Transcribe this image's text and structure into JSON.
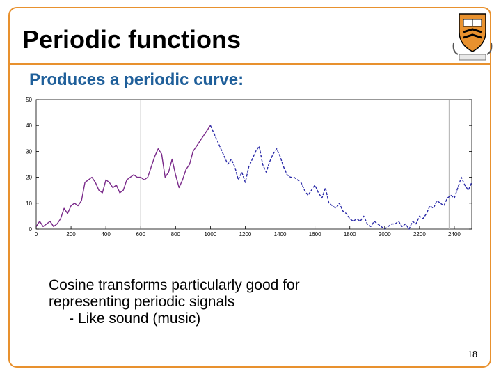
{
  "slide": {
    "title": "Periodic functions",
    "subtitle": "Produces a periodic curve:",
    "body_lines": [
      "Cosine transforms particularly good for",
      "representing periodic signals",
      "     - Like sound (music)"
    ],
    "page_number": "18",
    "colors": {
      "accent": "#e8912e",
      "subtitle": "#1f5f9a",
      "curve_purple": "#7a2a8a",
      "curve_blue": "#2a2aa8"
    },
    "logo_icon": "university-shield-icon"
  },
  "chart_data": {
    "type": "line",
    "x_ticks": [
      "0",
      "200",
      "400",
      "600",
      "800",
      "1000",
      "1200",
      "1400",
      "1600",
      "1800",
      "2000",
      "2200",
      "2400"
    ],
    "y_ticks": [
      "0",
      "10",
      "20",
      "30",
      "40",
      "50"
    ],
    "xlim": [
      0,
      2500
    ],
    "ylim": [
      0,
      50
    ],
    "grid": false,
    "vertical_markers": [
      600,
      2370
    ],
    "series": [
      {
        "style": "solid-purple",
        "x": [
          0,
          20,
          40,
          60,
          80,
          100,
          120,
          140,
          160,
          180,
          200,
          220,
          240,
          260,
          280,
          300,
          320,
          340,
          360,
          380,
          400,
          420,
          440,
          460,
          480,
          500,
          520,
          540,
          560,
          580,
          600,
          620,
          640,
          660,
          680,
          700,
          720,
          740,
          760,
          780,
          800,
          820,
          840,
          860,
          880,
          900,
          920,
          940,
          960,
          980,
          1000
        ],
        "y": [
          1,
          3,
          1,
          2,
          3,
          1,
          2,
          4,
          8,
          6,
          9,
          10,
          9,
          11,
          18,
          19,
          20,
          18,
          15,
          14,
          19,
          18,
          16,
          17,
          14,
          15,
          19,
          20,
          21,
          20,
          20,
          19,
          20,
          24,
          28,
          31,
          29,
          20,
          22,
          27,
          21,
          16,
          19,
          23,
          25,
          30,
          32,
          34,
          36,
          38,
          40
        ]
      },
      {
        "style": "dashed-blue",
        "x": [
          1000,
          1020,
          1040,
          1060,
          1080,
          1100,
          1120,
          1140,
          1160,
          1180,
          1200,
          1220,
          1240,
          1260,
          1280,
          1300,
          1320,
          1340,
          1360,
          1380,
          1400,
          1420,
          1440,
          1460,
          1480,
          1500,
          1520,
          1540,
          1560,
          1580,
          1600,
          1620,
          1640,
          1660,
          1680,
          1700,
          1720,
          1740,
          1760,
          1780,
          1800,
          1820,
          1840,
          1860,
          1880,
          1900,
          1920,
          1940,
          1960,
          1980,
          2000,
          2020,
          2040,
          2060,
          2080,
          2100,
          2120,
          2140,
          2160,
          2180,
          2200,
          2220,
          2240,
          2260,
          2280,
          2300,
          2320,
          2340,
          2360,
          2380,
          2400,
          2420,
          2440,
          2460,
          2480,
          2500
        ],
        "y": [
          40,
          37,
          34,
          31,
          28,
          25,
          27,
          24,
          19,
          22,
          18,
          24,
          27,
          30,
          32,
          25,
          22,
          26,
          29,
          31,
          28,
          24,
          21,
          20,
          20,
          19,
          18,
          15,
          13,
          15,
          17,
          14,
          12,
          16,
          10,
          9,
          8,
          10,
          7,
          6,
          4,
          3,
          4,
          3,
          5,
          2,
          1,
          3,
          2,
          1,
          0,
          1,
          2,
          2,
          3,
          1,
          2,
          0,
          3,
          2,
          5,
          4,
          6,
          9,
          8,
          11,
          10,
          9,
          12,
          13,
          12,
          16,
          20,
          17,
          15,
          18
        ]
      }
    ]
  }
}
